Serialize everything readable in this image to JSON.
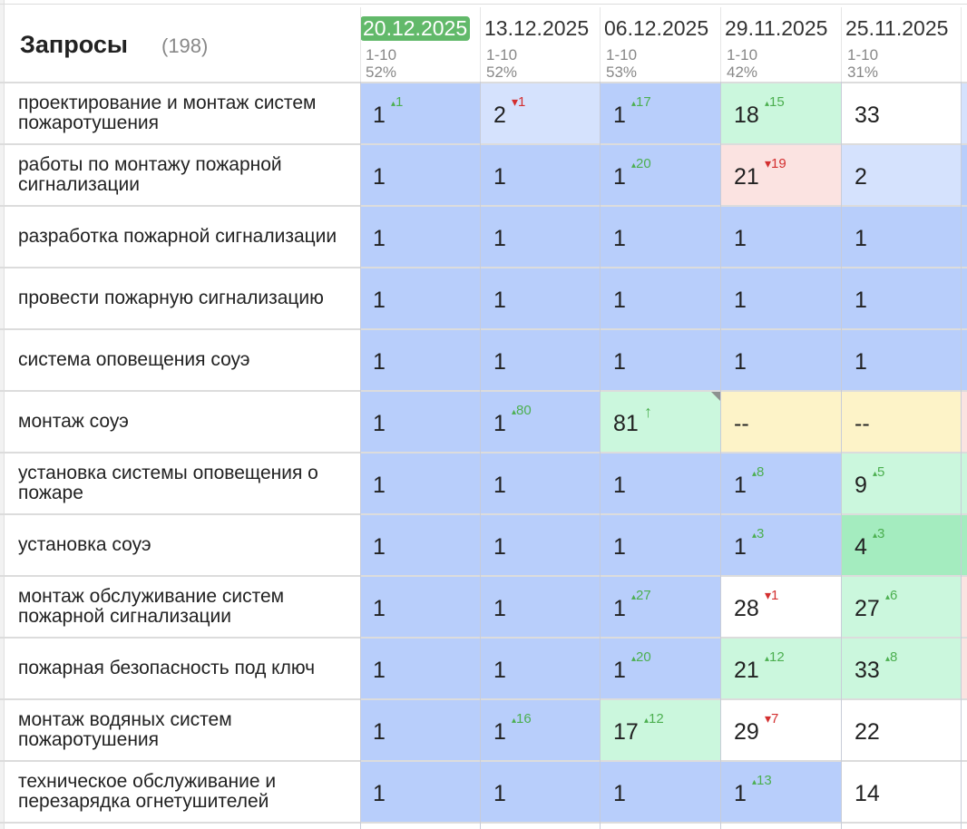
{
  "header": {
    "title": "Запросы",
    "count": "(198)"
  },
  "columns": [
    {
      "date": "20.12.2025",
      "range": "1-10",
      "pct": "52%",
      "active": true
    },
    {
      "date": "13.12.2025",
      "range": "1-10",
      "pct": "52%"
    },
    {
      "date": "06.12.2025",
      "range": "1-10",
      "pct": "53%"
    },
    {
      "date": "29.11.2025",
      "range": "1-10",
      "pct": "42%"
    },
    {
      "date": "25.11.2025",
      "range": "1-10",
      "pct": "31%"
    }
  ],
  "rows": [
    {
      "query": "проектирование и монтаж систем пожаротушения",
      "cells": [
        {
          "v": "1",
          "d": "1",
          "dir": "up",
          "c": "blue"
        },
        {
          "v": "2",
          "d": "1",
          "dir": "down",
          "c": "lightblue"
        },
        {
          "v": "1",
          "d": "17",
          "dir": "up",
          "c": "blue"
        },
        {
          "v": "18",
          "d": "15",
          "dir": "up",
          "c": "green"
        },
        {
          "v": "33",
          "c": "white"
        }
      ],
      "edge": "lightblue"
    },
    {
      "query": "работы по монтажу пожарной сигнализации",
      "cells": [
        {
          "v": "1",
          "c": "blue"
        },
        {
          "v": "1",
          "c": "blue"
        },
        {
          "v": "1",
          "d": "20",
          "dir": "up",
          "c": "blue"
        },
        {
          "v": "21",
          "d": "19",
          "dir": "down",
          "c": "red"
        },
        {
          "v": "2",
          "c": "lightblue"
        }
      ],
      "edge": "blue"
    },
    {
      "query": "разработка пожарной сигнализации",
      "cells": [
        {
          "v": "1",
          "c": "blue"
        },
        {
          "v": "1",
          "c": "blue"
        },
        {
          "v": "1",
          "c": "blue"
        },
        {
          "v": "1",
          "c": "blue"
        },
        {
          "v": "1",
          "c": "blue"
        }
      ],
      "edge": "blue"
    },
    {
      "query": "провести пожарную сигнализацию",
      "cells": [
        {
          "v": "1",
          "c": "blue"
        },
        {
          "v": "1",
          "c": "blue"
        },
        {
          "v": "1",
          "c": "blue"
        },
        {
          "v": "1",
          "c": "blue"
        },
        {
          "v": "1",
          "c": "blue"
        }
      ],
      "edge": "blue"
    },
    {
      "query": "система оповещения соуэ",
      "cells": [
        {
          "v": "1",
          "c": "blue"
        },
        {
          "v": "1",
          "c": "blue"
        },
        {
          "v": "1",
          "c": "blue"
        },
        {
          "v": "1",
          "c": "blue"
        },
        {
          "v": "1",
          "c": "blue"
        }
      ],
      "edge": "blue"
    },
    {
      "query": "монтаж соуэ",
      "cells": [
        {
          "v": "1",
          "c": "blue"
        },
        {
          "v": "1",
          "d": "80",
          "dir": "up",
          "c": "blue"
        },
        {
          "v": "81",
          "d": "↑",
          "dir": "up",
          "c": "green",
          "corner": true
        },
        {
          "v": "--",
          "c": "yellow"
        },
        {
          "v": "--",
          "c": "yellow"
        }
      ],
      "edge": "red"
    },
    {
      "query": "установка системы оповещения о пожаре",
      "cells": [
        {
          "v": "1",
          "c": "blue"
        },
        {
          "v": "1",
          "c": "blue"
        },
        {
          "v": "1",
          "c": "blue"
        },
        {
          "v": "1",
          "d": "8",
          "dir": "up",
          "c": "blue"
        },
        {
          "v": "9",
          "d": "5",
          "dir": "up",
          "c": "green"
        }
      ],
      "edge": "green"
    },
    {
      "query": "установка соуэ",
      "cells": [
        {
          "v": "1",
          "c": "blue"
        },
        {
          "v": "1",
          "c": "blue"
        },
        {
          "v": "1",
          "c": "blue"
        },
        {
          "v": "1",
          "d": "3",
          "dir": "up",
          "c": "blue"
        },
        {
          "v": "4",
          "d": "3",
          "dir": "up",
          "c": "green2"
        }
      ],
      "edge": "green2"
    },
    {
      "query": "монтаж обслуживание систем пожарной сигнализации",
      "cells": [
        {
          "v": "1",
          "c": "blue"
        },
        {
          "v": "1",
          "c": "blue"
        },
        {
          "v": "1",
          "d": "27",
          "dir": "up",
          "c": "blue"
        },
        {
          "v": "28",
          "d": "1",
          "dir": "down",
          "c": "white"
        },
        {
          "v": "27",
          "d": "6",
          "dir": "up",
          "c": "green"
        }
      ],
      "edge": "red"
    },
    {
      "query": "пожарная безопасность под ключ",
      "cells": [
        {
          "v": "1",
          "c": "blue"
        },
        {
          "v": "1",
          "c": "blue"
        },
        {
          "v": "1",
          "d": "20",
          "dir": "up",
          "c": "blue"
        },
        {
          "v": "21",
          "d": "12",
          "dir": "up",
          "c": "green"
        },
        {
          "v": "33",
          "d": "8",
          "dir": "up",
          "c": "green"
        }
      ],
      "edge": "red"
    },
    {
      "query": "монтаж водяных систем пожаротушения",
      "cells": [
        {
          "v": "1",
          "c": "blue"
        },
        {
          "v": "1",
          "d": "16",
          "dir": "up",
          "c": "blue"
        },
        {
          "v": "17",
          "d": "12",
          "dir": "up",
          "c": "green"
        },
        {
          "v": "29",
          "d": "7",
          "dir": "down",
          "c": "white"
        },
        {
          "v": "22",
          "c": "white"
        }
      ],
      "edge": "white"
    },
    {
      "query": "техническое обслуживание и перезарядка огнетушителей",
      "cells": [
        {
          "v": "1",
          "c": "blue"
        },
        {
          "v": "1",
          "c": "blue"
        },
        {
          "v": "1",
          "c": "blue"
        },
        {
          "v": "1",
          "d": "13",
          "dir": "up",
          "c": "blue"
        },
        {
          "v": "14",
          "c": "white"
        }
      ],
      "edge": "white"
    }
  ]
}
